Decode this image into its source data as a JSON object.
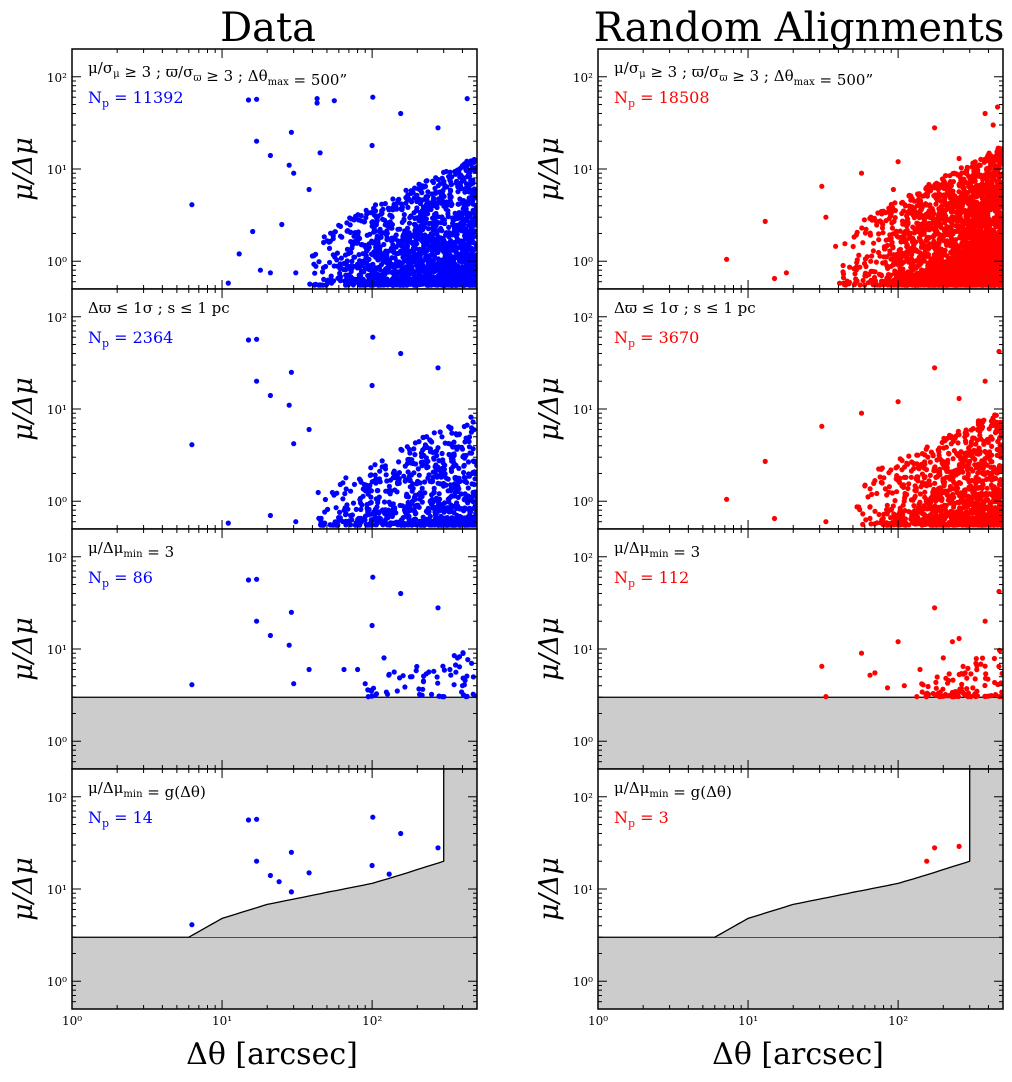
{
  "figure": {
    "x_axis_label": "Δθ [arcsec]",
    "y_axis_label": "μ/Δμ",
    "x_tick_labels": [
      "10⁰",
      "10¹",
      "10²"
    ],
    "y_tick_labels": [
      "10⁰",
      "10¹",
      "10²"
    ]
  },
  "columns": [
    {
      "title": "Data",
      "color": "#0000ff"
    },
    {
      "title": "Random Alignments",
      "color": "#ff0000"
    }
  ],
  "chart_data": {
    "type": "scatter",
    "x_scale": "log",
    "y_scale": "log",
    "xlim": [
      1,
      500
    ],
    "ylim": [
      0.5,
      200
    ],
    "xlabel": "Δθ [arcsec]",
    "ylabel": "μ/Δμ",
    "threshold_curve": {
      "x": [
        6,
        10,
        20,
        50,
        100,
        150,
        300
      ],
      "y": [
        3,
        4.8,
        6.8,
        9.2,
        11.5,
        14,
        20
      ],
      "x_cut": 300
    },
    "panels": [
      {
        "id": "data-1",
        "column": 0,
        "row": 0,
        "condition": "μ/σμ ≥ 3 ; ϖ/σϖ ≥ 3 ; Δθmax = 500”",
        "np_text": "Np = 11392",
        "np": 11392,
        "shade": "none",
        "points": [
          [
            6.3,
            4.1
          ],
          [
            11,
            0.58
          ],
          [
            13,
            1.2
          ],
          [
            15,
            56
          ],
          [
            16,
            2.1
          ],
          [
            17,
            57
          ],
          [
            17,
            20
          ],
          [
            18,
            0.8
          ],
          [
            21,
            14
          ],
          [
            21,
            0.75
          ],
          [
            25,
            2.5
          ],
          [
            28,
            11
          ],
          [
            29,
            25
          ],
          [
            30,
            9
          ],
          [
            31,
            0.75
          ],
          [
            38,
            6
          ],
          [
            43,
            58
          ],
          [
            43,
            52
          ],
          [
            45,
            15
          ],
          [
            56,
            55
          ],
          [
            100,
            18
          ],
          [
            101,
            60
          ],
          [
            155,
            40
          ],
          [
            275,
            28
          ],
          [
            430,
            58
          ]
        ],
        "cloud": {
          "count": 1700,
          "seed": 11,
          "xmin": 35,
          "xmax": 500,
          "ymin": 0.55,
          "ymax": 14,
          "kx": 2.2,
          "ky": 2.0
        }
      },
      {
        "id": "data-2",
        "column": 0,
        "row": 1,
        "condition": "Δϖ ≤ 1σ ; s ≤ 1 pc",
        "np_text": "Np = 2364",
        "np": 2364,
        "shade": "none",
        "points": [
          [
            6.3,
            4.1
          ],
          [
            11,
            0.58
          ],
          [
            15,
            56
          ],
          [
            17,
            57
          ],
          [
            17,
            20
          ],
          [
            21,
            14
          ],
          [
            21,
            0.7
          ],
          [
            28,
            11
          ],
          [
            29,
            25
          ],
          [
            30,
            4.2
          ],
          [
            31,
            0.6
          ],
          [
            38,
            6
          ],
          [
            100,
            18
          ],
          [
            101,
            60
          ],
          [
            155,
            40
          ],
          [
            275,
            28
          ]
        ],
        "cloud": {
          "count": 750,
          "seed": 22,
          "xmin": 40,
          "xmax": 500,
          "ymin": 0.55,
          "ymax": 9,
          "kx": 2.0,
          "ky": 2.2
        }
      },
      {
        "id": "data-3",
        "column": 0,
        "row": 2,
        "condition": "μ/Δμmin = 3",
        "np_text": "Np = 86",
        "np": 86,
        "shade": "flat",
        "points": [
          [
            6.3,
            4.1
          ],
          [
            15,
            56
          ],
          [
            17,
            57
          ],
          [
            17,
            20
          ],
          [
            21,
            14
          ],
          [
            28,
            11
          ],
          [
            29,
            25
          ],
          [
            30,
            4.2
          ],
          [
            38,
            6
          ],
          [
            100,
            18
          ],
          [
            101,
            60
          ],
          [
            155,
            40
          ],
          [
            275,
            28
          ],
          [
            65,
            6
          ],
          [
            80,
            6
          ],
          [
            90,
            4.2
          ],
          [
            120,
            8
          ],
          [
            130,
            5.3
          ],
          [
            180,
            5
          ],
          [
            220,
            4.5
          ],
          [
            330,
            6
          ],
          [
            400,
            4
          ],
          [
            460,
            7
          ]
        ],
        "cloud": {
          "count": 60,
          "seed": 33,
          "xmin": 70,
          "xmax": 500,
          "ymin": 3.05,
          "ymax": 10,
          "kx": 1.6,
          "ky": 2.2
        }
      },
      {
        "id": "data-4",
        "column": 0,
        "row": 3,
        "condition": "μ/Δμmin = g(Δθ)",
        "np_text": "Np = 14",
        "np": 14,
        "shade": "curve",
        "points": [
          [
            6.3,
            4.1
          ],
          [
            15,
            56
          ],
          [
            17,
            57
          ],
          [
            17,
            20
          ],
          [
            21,
            14
          ],
          [
            24,
            12
          ],
          [
            29,
            25
          ],
          [
            29,
            9.3
          ],
          [
            38,
            15
          ],
          [
            100,
            18
          ],
          [
            101,
            60
          ],
          [
            130,
            14.5
          ],
          [
            155,
            40
          ],
          [
            275,
            28
          ]
        ],
        "cloud": null
      },
      {
        "id": "random-1",
        "column": 1,
        "row": 0,
        "condition": "μ/σμ ≥ 3 ; ϖ/σϖ ≥ 3 ; Δθmax = 500”",
        "np_text": "Np = 18508",
        "np": 18508,
        "shade": "none",
        "points": [
          [
            7.2,
            1.05
          ],
          [
            13,
            2.7
          ],
          [
            15,
            0.65
          ],
          [
            18,
            0.75
          ],
          [
            31,
            6.5
          ],
          [
            33,
            3
          ],
          [
            43,
            0.9
          ],
          [
            57,
            9
          ],
          [
            93,
            6
          ],
          [
            100,
            12
          ],
          [
            175,
            28
          ],
          [
            255,
            13
          ],
          [
            280,
            5.5
          ],
          [
            380,
            40
          ],
          [
            430,
            30
          ],
          [
            460,
            47
          ]
        ],
        "cloud": {
          "count": 2600,
          "seed": 44,
          "xmin": 35,
          "xmax": 500,
          "ymin": 0.55,
          "ymax": 18,
          "kx": 2.6,
          "ky": 2.0
        }
      },
      {
        "id": "random-2",
        "column": 1,
        "row": 1,
        "condition": "Δϖ ≤ 1σ ; s ≤ 1 pc",
        "np_text": "Np = 3670",
        "np": 3670,
        "shade": "none",
        "points": [
          [
            7.2,
            1.05
          ],
          [
            13,
            2.7
          ],
          [
            15,
            0.65
          ],
          [
            31,
            6.5
          ],
          [
            33,
            0.6
          ],
          [
            57,
            9
          ],
          [
            100,
            12
          ],
          [
            175,
            28
          ],
          [
            255,
            13
          ],
          [
            280,
            5.5
          ],
          [
            380,
            20
          ],
          [
            470,
            42
          ]
        ],
        "cloud": {
          "count": 1050,
          "seed": 55,
          "xmin": 45,
          "xmax": 500,
          "ymin": 0.55,
          "ymax": 10,
          "kx": 2.3,
          "ky": 2.0
        }
      },
      {
        "id": "random-3",
        "column": 1,
        "row": 2,
        "condition": "μ/Δμmin = 3",
        "np_text": "Np = 112",
        "np": 112,
        "shade": "flat",
        "points": [
          [
            31,
            6.5
          ],
          [
            33,
            3.05
          ],
          [
            57,
            9
          ],
          [
            65,
            5.2
          ],
          [
            70,
            5.5
          ],
          [
            85,
            3.8
          ],
          [
            100,
            12
          ],
          [
            110,
            4
          ],
          [
            140,
            6
          ],
          [
            175,
            28
          ],
          [
            200,
            8
          ],
          [
            230,
            12
          ],
          [
            255,
            13
          ],
          [
            280,
            5.5
          ],
          [
            330,
            7
          ],
          [
            380,
            20
          ],
          [
            470,
            42
          ]
        ],
        "cloud": {
          "count": 95,
          "seed": 66,
          "xmin": 130,
          "xmax": 500,
          "ymin": 3.05,
          "ymax": 10,
          "kx": 1.5,
          "ky": 2.4
        }
      },
      {
        "id": "random-4",
        "column": 1,
        "row": 3,
        "condition": "μ/Δμmin = g(Δθ)",
        "np_text": "Np = 3",
        "np": 3,
        "shade": "curve",
        "points": [
          [
            155,
            20
          ],
          [
            175,
            28
          ],
          [
            255,
            29
          ]
        ],
        "cloud": null
      }
    ]
  }
}
